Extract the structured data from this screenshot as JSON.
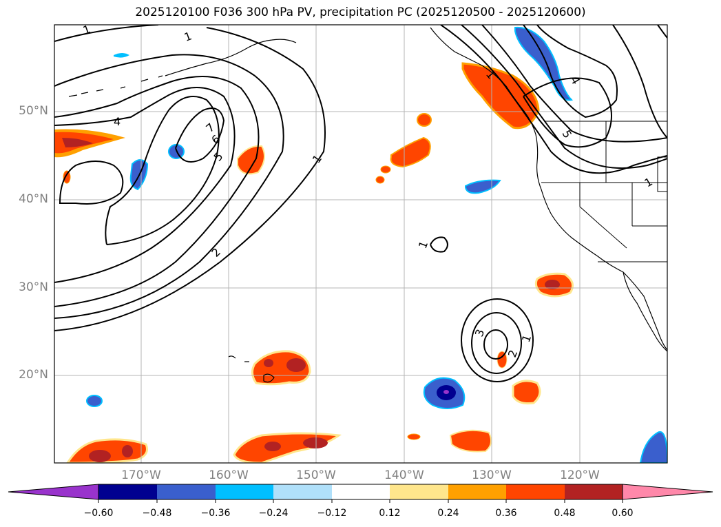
{
  "title": "2025120100 F036 300 hPa PV, precipitation PC (2025120500 - 2025120600)",
  "map": {
    "lat_labels": [
      "50°N",
      "40°N",
      "30°N",
      "20°N"
    ],
    "lon_labels": [
      "170°W",
      "160°W",
      "150°W",
      "140°W",
      "130°W",
      "120°W"
    ],
    "contour_labels": [
      "1",
      "1",
      "4",
      "7",
      "6",
      "5",
      "1",
      "2",
      "1",
      "4",
      "5",
      "1",
      "1",
      "3",
      "2",
      "1"
    ]
  },
  "colorbar": {
    "tick_labels": [
      "−0.60",
      "−0.48",
      "−0.36",
      "−0.24",
      "−0.12",
      "0.12",
      "0.24",
      "0.36",
      "0.48",
      "0.60"
    ],
    "colors": [
      "#9933cc",
      "#000090",
      "#3a5fcd",
      "#00bfff",
      "#b0e0fa",
      "#ffffff",
      "#ffe68c",
      "#ffa000",
      "#ff4500",
      "#b22222",
      "#ff88aa"
    ]
  },
  "colors": {
    "contour": "#000000",
    "grid": "#b4b4b4",
    "coast": "#000000",
    "tick_text": "#808080"
  }
}
